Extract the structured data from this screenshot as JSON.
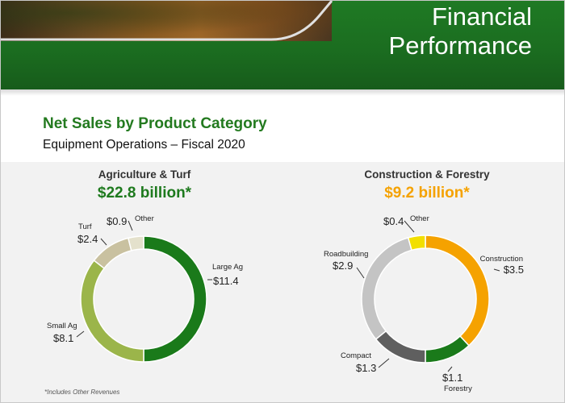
{
  "banner": {
    "title_line1": "Financial",
    "title_line2": "Performance",
    "colors": {
      "green": "#1b6d20",
      "text": "#ffffff"
    }
  },
  "heading": "Net Sales by Product Category",
  "subheading": "Equipment Operations – Fiscal 2020",
  "footnote": "*Includes Other Revenues",
  "chart_data": [
    {
      "type": "pie",
      "title": "Agriculture & Turf",
      "total_label": "$22.8 billion*",
      "total_color": "#1e7a1e",
      "categories": [
        "Large Ag",
        "Small Ag",
        "Turf",
        "Other"
      ],
      "values": [
        11.4,
        8.1,
        2.4,
        0.9
      ],
      "value_labels": [
        "$11.4",
        "$8.1",
        "$2.4",
        "$0.9"
      ],
      "colors": [
        "#1a7a1a",
        "#9bb54a",
        "#c9c1a0",
        "#e4e1cc"
      ],
      "start": "top, clockwise",
      "legend": "none"
    },
    {
      "type": "pie",
      "title": "Construction & Forestry",
      "total_label": "$9.2 billion*",
      "total_color": "#f5a200",
      "categories": [
        "Construction",
        "Forestry",
        "Compact",
        "Roadbuilding",
        "Other"
      ],
      "values": [
        3.5,
        1.1,
        1.3,
        2.9,
        0.4
      ],
      "value_labels": [
        "$3.5",
        "$1.1",
        "$1.3",
        "$2.9",
        "$0.4"
      ],
      "colors": [
        "#f5a200",
        "#1a7a1a",
        "#5f5f5f",
        "#c4c4c4",
        "#f2df00"
      ],
      "start": "top, clockwise",
      "legend": "none"
    }
  ]
}
